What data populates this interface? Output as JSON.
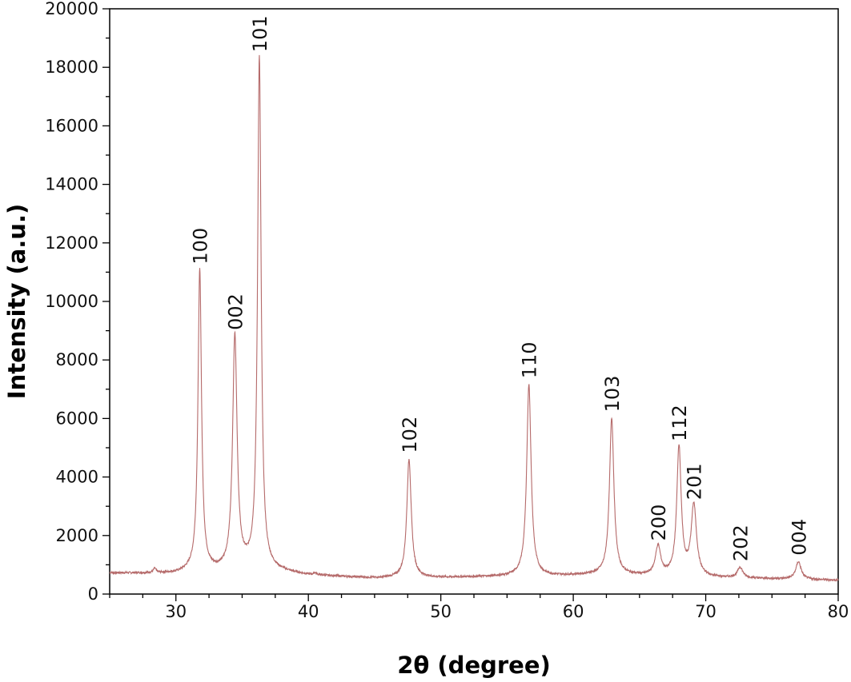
{
  "chart_data": {
    "type": "line",
    "title": "",
    "xlabel": "2θ (degree)",
    "ylabel": "Intensity (a.u.)",
    "xlim": [
      25,
      80
    ],
    "ylim": [
      0,
      20000
    ],
    "x_ticks": [
      30,
      40,
      50,
      60,
      70,
      80
    ],
    "x_tick_labels": [
      "30",
      "40",
      "50",
      "60",
      "70",
      "80"
    ],
    "y_ticks": [
      0,
      2000,
      4000,
      6000,
      8000,
      10000,
      12000,
      14000,
      16000,
      18000,
      20000
    ],
    "y_tick_labels": [
      "0",
      "2000",
      "4000",
      "6000",
      "8000",
      "10000",
      "12000",
      "14000",
      "16000",
      "18000",
      "20000"
    ],
    "grid": false,
    "line_color": "#b56a6a",
    "baseline": [
      [
        25,
        720
      ],
      [
        30,
        700
      ],
      [
        31,
        760
      ],
      [
        33.5,
        760
      ],
      [
        35.2,
        820
      ],
      [
        37.5,
        780
      ],
      [
        40,
        640
      ],
      [
        45,
        540
      ],
      [
        50,
        560
      ],
      [
        55,
        600
      ],
      [
        58,
        610
      ],
      [
        62,
        660
      ],
      [
        65,
        620
      ],
      [
        70,
        560
      ],
      [
        75,
        520
      ],
      [
        80,
        470
      ]
    ],
    "peaks": [
      {
        "label": "100",
        "x": 31.8,
        "y": 11050
      },
      {
        "label": "002",
        "x": 34.45,
        "y": 8800
      },
      {
        "label": "101",
        "x": 36.3,
        "y": 18300
      },
      {
        "label": "102",
        "x": 47.6,
        "y": 4600
      },
      {
        "label": "110",
        "x": 56.65,
        "y": 7150
      },
      {
        "label": "103",
        "x": 62.9,
        "y": 6000
      },
      {
        "label": "200",
        "x": 66.4,
        "y": 1600
      },
      {
        "label": "112",
        "x": 67.98,
        "y": 5000
      },
      {
        "label": "201",
        "x": 69.1,
        "y": 3000
      },
      {
        "label": "202",
        "x": 72.6,
        "y": 900
      },
      {
        "label": "004",
        "x": 77.0,
        "y": 1100
      }
    ],
    "minor_features": [
      {
        "x": 28.4,
        "y": 850
      },
      {
        "x": 40.5,
        "y": 700
      }
    ]
  }
}
